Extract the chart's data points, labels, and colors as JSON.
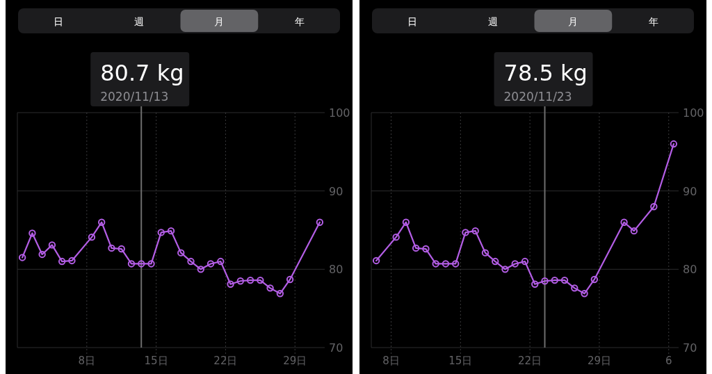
{
  "chart_data": [
    {
      "type": "line",
      "annotations": [
        "日",
        "週",
        "月",
        "年",
        "80.7 kg"
      ],
      "x": [
        "2020-11-01T12:00",
        "2020-11-02T12:00",
        "2020-11-03T12:00",
        "2020-11-04T12:00",
        "2020-11-05T12:00",
        "2020-11-06T12:00",
        "2020-11-08T12:00",
        "2020-11-09T12:00",
        "2020-11-10T12:00",
        "2020-11-11T12:00",
        "2020-11-12T12:00",
        "2020-11-13T12:00",
        "2020-11-14T12:00",
        "2020-11-15T12:00",
        "2020-11-16T12:00",
        "2020-11-17T12:00",
        "2020-11-18T12:00",
        "2020-11-19T12:00",
        "2020-11-20T12:00",
        "2020-11-21T12:00",
        "2020-11-22T12:00",
        "2020-11-23T12:00",
        "2020-11-24T12:00",
        "2020-11-25T12:00",
        "2020-11-26T12:00",
        "2020-11-27T12:00",
        "2020-11-28T12:00",
        "2020-12-01T12:00"
      ],
      "series": [
        {
          "color": "#b45ee6",
          "values": [
            81.5,
            84.6,
            81.9,
            83.1,
            81.0,
            81.1,
            84.1,
            86.0,
            82.7,
            82.6,
            80.7,
            80.7,
            80.7,
            84.7,
            84.9,
            82.1,
            81.0,
            80.0,
            80.7,
            81.0,
            78.1,
            78.5,
            78.6,
            78.6,
            77.6,
            76.9,
            78.7,
            86.0
          ]
        }
      ],
      "xlim": [
        "2020-11-01",
        "2020-12-02"
      ],
      "xticks": [
        {
          "value": "2020-11-08",
          "label": "8日"
        },
        {
          "value": "2020-11-15",
          "label": "15日"
        },
        {
          "value": "2020-11-22",
          "label": "22日"
        },
        {
          "value": "2020-11-29",
          "label": "29日"
        }
      ],
      "ylim": [
        70,
        100
      ],
      "yticks": [
        70,
        80,
        90,
        100
      ],
      "grid": true,
      "marker": "circle",
      "line_style": "solid",
      "ref_lines": [
        {
          "axis": "x",
          "value": "2020-11-13T12:00",
          "label": "2020/11/13",
          "color": "#6e6e6e"
        }
      ]
    },
    {
      "type": "line",
      "annotations": [
        "日",
        "週",
        "月",
        "年",
        "78.5 kg"
      ],
      "x": [
        "2020-11-06T12:00",
        "2020-11-08T12:00",
        "2020-11-09T12:00",
        "2020-11-10T12:00",
        "2020-11-11T12:00",
        "2020-11-12T12:00",
        "2020-11-13T12:00",
        "2020-11-14T12:00",
        "2020-11-15T12:00",
        "2020-11-16T12:00",
        "2020-11-17T12:00",
        "2020-11-18T12:00",
        "2020-11-19T12:00",
        "2020-11-20T12:00",
        "2020-11-21T12:00",
        "2020-11-22T12:00",
        "2020-11-23T12:00",
        "2020-11-24T12:00",
        "2020-11-25T12:00",
        "2020-11-26T12:00",
        "2020-11-27T12:00",
        "2020-11-28T12:00",
        "2020-12-01T12:00",
        "2020-12-02T12:00",
        "2020-12-04T12:00",
        "2020-12-06T12:00"
      ],
      "series": [
        {
          "color": "#b45ee6",
          "values": [
            81.1,
            84.1,
            86.0,
            82.7,
            82.6,
            80.7,
            80.7,
            80.7,
            84.7,
            84.9,
            82.1,
            81.0,
            80.0,
            80.7,
            81.0,
            78.1,
            78.5,
            78.6,
            78.6,
            77.6,
            76.9,
            78.7,
            86.0,
            84.9,
            88.0,
            96.0
          ]
        }
      ],
      "xlim": [
        "2020-11-06",
        "2020-12-07"
      ],
      "xticks": [
        {
          "value": "2020-11-08",
          "label": "8日"
        },
        {
          "value": "2020-11-15",
          "label": "15日"
        },
        {
          "value": "2020-11-22",
          "label": "22日"
        },
        {
          "value": "2020-11-29",
          "label": "29日"
        },
        {
          "value": "2020-12-06",
          "label": "6"
        }
      ],
      "ylim": [
        70,
        100
      ],
      "yticks": [
        70,
        80,
        90,
        100
      ],
      "grid": true,
      "marker": "circle",
      "line_style": "solid",
      "ref_lines": [
        {
          "axis": "x",
          "value": "2020-11-23T12:00",
          "label": "2020/11/23",
          "color": "#6e6e6e"
        }
      ]
    }
  ]
}
